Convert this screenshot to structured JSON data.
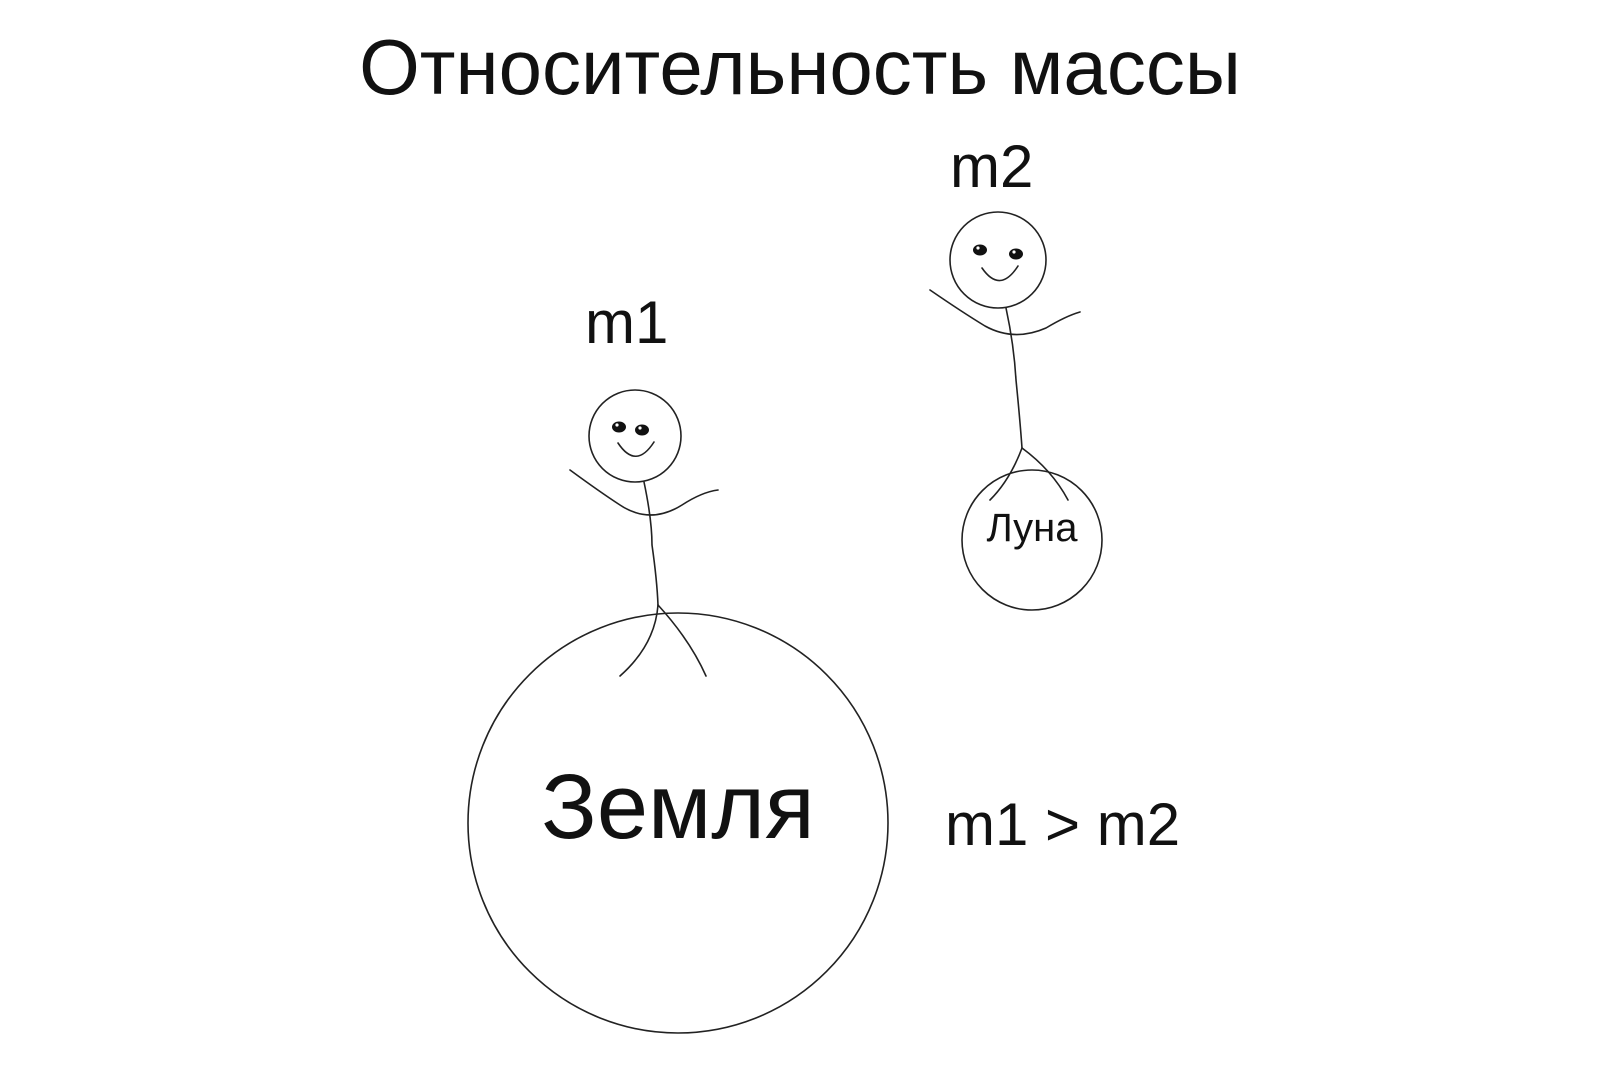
{
  "title": "Относительность массы",
  "labels": {
    "m1": "m1",
    "m2": "m2",
    "earth": "Земля",
    "moon": "Луна",
    "relation": "m1 > m2"
  },
  "colors": {
    "background": "#ffffff",
    "ink": "#111111"
  }
}
